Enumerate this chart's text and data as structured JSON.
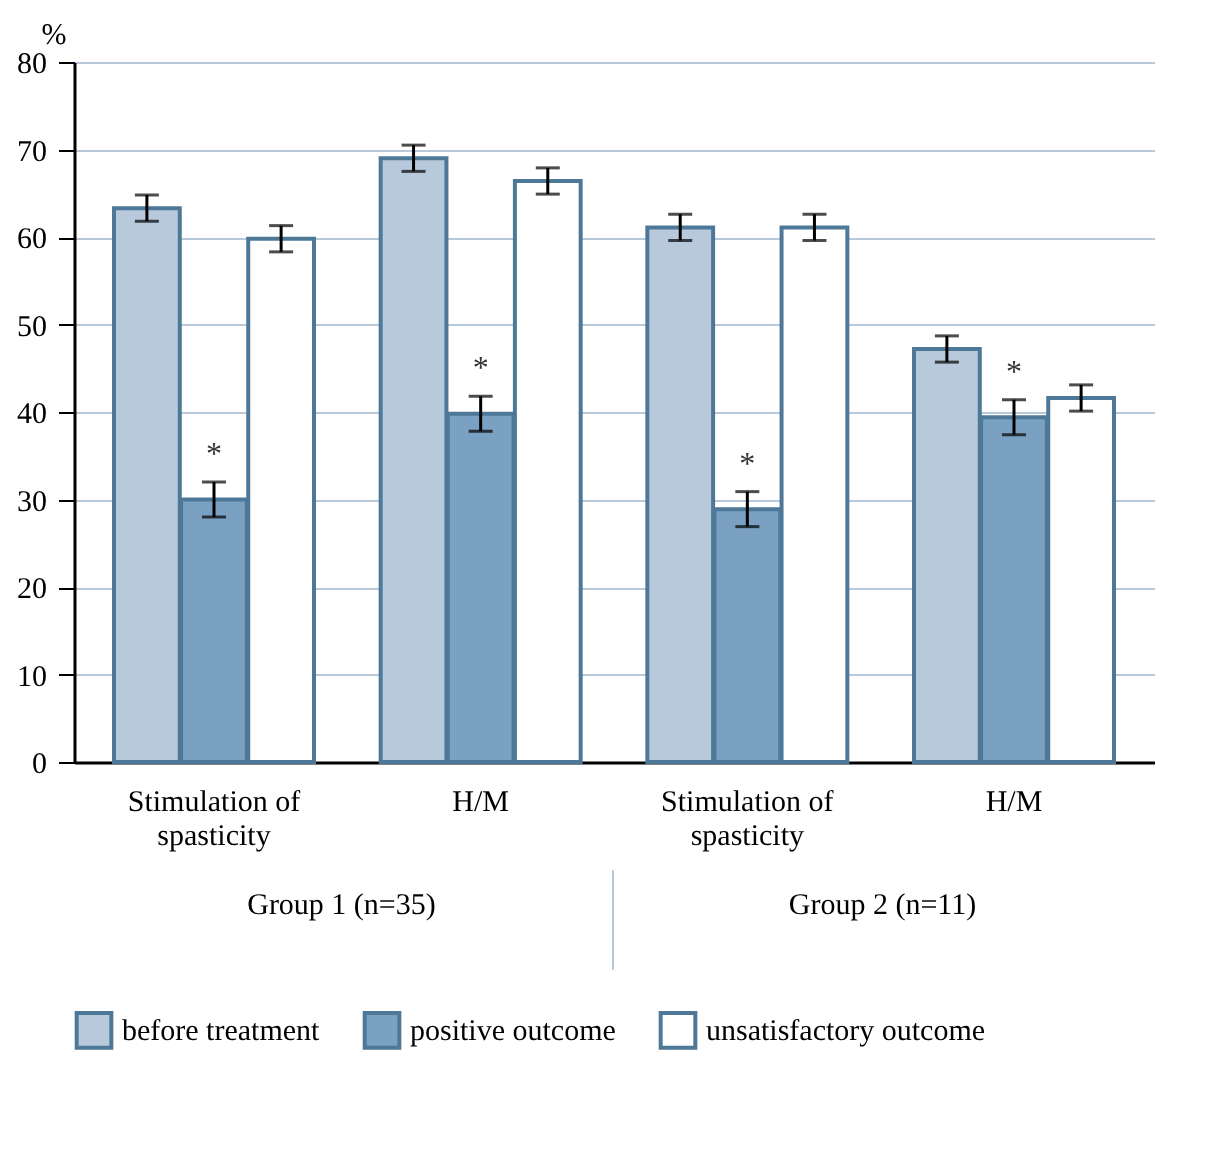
{
  "chart_data": {
    "type": "bar",
    "ylabel": "%",
    "categories": [
      "Stimulation of spasticity",
      "H/M",
      "Stimulation of spasticity",
      "H/M"
    ],
    "series": [
      {
        "name": "before treatment",
        "color": "#b8c9dc",
        "values": [
          63.3,
          69,
          61.1,
          47.2
        ],
        "errors": [
          1.5,
          1.5,
          1.5,
          1.5
        ]
      },
      {
        "name": "positive outcome",
        "color": "#7aa0c2",
        "values": [
          30,
          39.8,
          28.9,
          39.4
        ],
        "errors": [
          2,
          2,
          2,
          2
        ],
        "value_labels": [
          "*",
          "*",
          "*",
          "*"
        ]
      },
      {
        "name": "unsatisfactory outcome",
        "color": "#ffffff",
        "values": [
          59.8,
          66.4,
          61.1,
          41.6
        ],
        "errors": [
          1.5,
          1.5,
          1.5,
          1.5
        ]
      }
    ],
    "annotations": [
      "Group 1 (n=35)",
      "Group 2  (n=11)"
    ],
    "ylim": [
      0,
      80
    ],
    "yticks": [
      0,
      10,
      20,
      30,
      40,
      50,
      60,
      70,
      80
    ],
    "grid": "y",
    "legend": "bottom"
  }
}
